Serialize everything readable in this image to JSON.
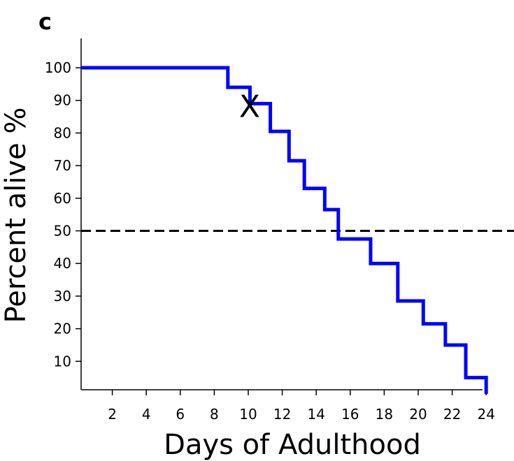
{
  "chart_data": {
    "type": "line",
    "panel_label": "c",
    "title": "",
    "xlabel": "Days of Adulthood",
    "ylabel": "Percent alive %",
    "xlim": [
      0,
      25
    ],
    "ylim": [
      0,
      108
    ],
    "x_ticks": [
      2,
      4,
      6,
      8,
      10,
      12,
      14,
      16,
      18,
      20,
      22,
      24
    ],
    "y_ticks": [
      10,
      20,
      30,
      40,
      50,
      60,
      70,
      80,
      90,
      100
    ],
    "grid": false,
    "step_curve": true,
    "series": [
      {
        "color": "#0000ff",
        "x": [
          0,
          8.8,
          10.1,
          11.3,
          12.4,
          13.3,
          14.5,
          15.3,
          17.2,
          18.8,
          20.3,
          21.6,
          22.8,
          24.0
        ],
        "y": [
          100,
          94,
          89,
          80.5,
          71.5,
          63,
          56.5,
          47.5,
          40,
          28.5,
          21.5,
          15,
          5,
          0
        ]
      }
    ],
    "reference_line": {
      "y": 50,
      "style": "dashed",
      "color": "#000000"
    },
    "marker": {
      "label": "X",
      "x": 10.0,
      "y": 89
    }
  }
}
